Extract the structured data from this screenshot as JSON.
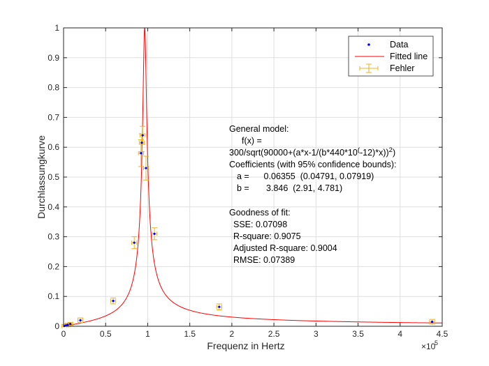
{
  "chart_data": {
    "type": "scatter",
    "title": "",
    "xlabel": "Frequenz in Hertz",
    "ylabel": "Durchlassungkurve",
    "x_exponent_label": "×10",
    "x_exponent_power": "5",
    "x_scale": 100000,
    "xlim": [
      0,
      450000
    ],
    "ylim": [
      0,
      1
    ],
    "xticks": [
      0,
      50000,
      100000,
      150000,
      200000,
      250000,
      300000,
      350000,
      400000,
      450000
    ],
    "xtick_labels": [
      "0",
      "0.5",
      "1",
      "1.5",
      "2",
      "2.5",
      "3",
      "3.5",
      "4",
      "4.5"
    ],
    "yticks": [
      0,
      0.1,
      0.2,
      0.3,
      0.4,
      0.5,
      0.6,
      0.7,
      0.8,
      0.9,
      1
    ],
    "ytick_labels": [
      "0",
      "0.1",
      "0.2",
      "0.3",
      "0.4",
      "0.5",
      "0.6",
      "0.7",
      "0.8",
      "0.9",
      "1"
    ],
    "grid": true,
    "legend_position": "top-right",
    "series": [
      {
        "name": "Data",
        "kind": "points",
        "color": "#0000ff",
        "x": [
          1000,
          3000,
          5000,
          8000,
          20000,
          59000,
          84000,
          92000,
          93000,
          94000,
          98000,
          108000,
          185000,
          438000
        ],
        "y": [
          0.001,
          0.003,
          0.005,
          0.008,
          0.02,
          0.085,
          0.28,
          0.58,
          0.615,
          0.64,
          0.53,
          0.31,
          0.065,
          0.015
        ]
      },
      {
        "name": "Fitted line",
        "kind": "line",
        "color": "#ff0000",
        "model": {
          "a": 0.06355,
          "b": 3.846
        }
      },
      {
        "name": "Fehler",
        "kind": "errorbar",
        "color": "#edb120",
        "x": [
          1000,
          3000,
          5000,
          8000,
          20000,
          59000,
          84000,
          92000,
          93000,
          94000,
          98000,
          108000,
          185000,
          438000
        ],
        "y": [
          0.001,
          0.003,
          0.005,
          0.008,
          0.02,
          0.085,
          0.28,
          0.58,
          0.615,
          0.64,
          0.53,
          0.31,
          0.065,
          0.015
        ],
        "yerr": [
          0.005,
          0.005,
          0.005,
          0.005,
          0.008,
          0.01,
          0.02,
          0.045,
          0.03,
          0.03,
          0.04,
          0.02,
          0.01,
          0.008
        ],
        "xerr": [
          3000,
          3000,
          3000,
          3000,
          3000,
          3000,
          3000,
          3000,
          3000,
          3000,
          3000,
          3000,
          3000,
          3000
        ]
      }
    ],
    "annotation": {
      "line1": "General model:",
      "line2": "f(x) =",
      "line3_main": "300/sqrt(90000+(a*x-1/(b*440*10",
      "line3_sup1": "(",
      "line3_mid": "-12)*x))",
      "line3_sup2": "2",
      "line3_end": ")",
      "line4": "Coefficients (with 95% confidence bounds):",
      "line5": "a =      0.06355  (0.04791, 0.07919)",
      "line6": "b =       3.846  (2.91, 4.781)",
      "line7": "Goodness of fit:",
      "line8": "SSE: 0.07098",
      "line9": "R-square: 0.9075",
      "line10": "Adjusted R-square: 0.9004",
      "line11": "RMSE: 0.07389"
    }
  }
}
